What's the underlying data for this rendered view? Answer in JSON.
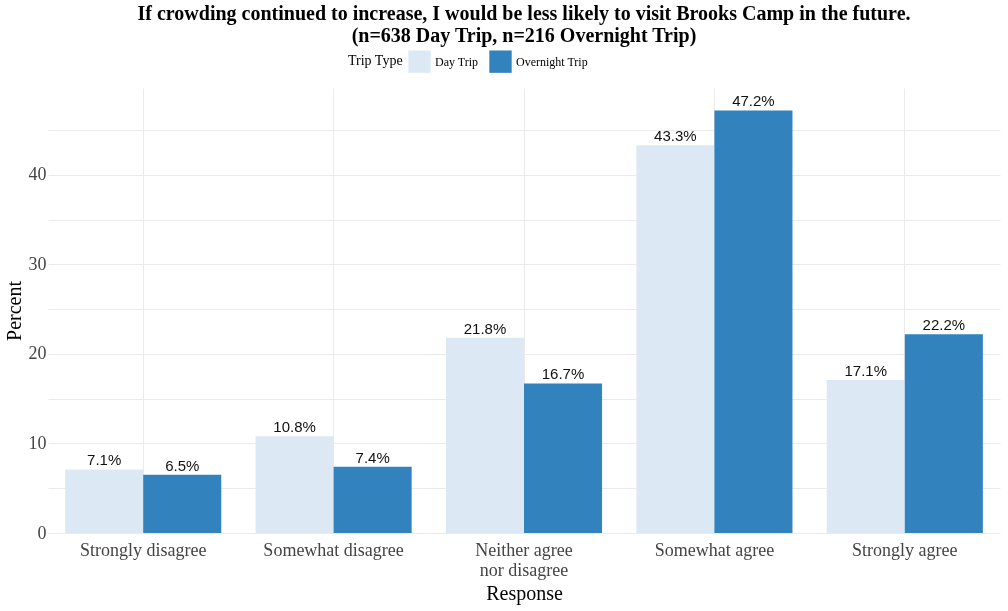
{
  "chart_data": {
    "type": "bar",
    "title": "If crowding continued to increase, I would be less likely to visit Brooks Camp in the future.",
    "subtitle": "(n=638 Day Trip, n=216 Overnight Trip)",
    "xlabel": "Response",
    "ylabel": "Percent",
    "legend_title": "Trip Type",
    "legend": "top",
    "categories": [
      "Strongly disagree",
      "Somewhat disagree",
      "Neither agree\nnor disagree",
      "Somewhat agree",
      "Strongly agree"
    ],
    "series": [
      {
        "name": "Day Trip",
        "color": "#dce9f5",
        "values": [
          7.1,
          10.8,
          21.8,
          43.3,
          17.1
        ],
        "value_labels": [
          "7.1%",
          "10.8%",
          "21.8%",
          "43.3%",
          "17.1%"
        ]
      },
      {
        "name": "Overnight Trip",
        "color": "#3182bd",
        "values": [
          6.5,
          7.4,
          16.7,
          47.2,
          22.2
        ],
        "value_labels": [
          "6.5%",
          "7.4%",
          "16.7%",
          "47.2%",
          "22.2%"
        ]
      }
    ],
    "ylim": [
      0,
      49.7
    ],
    "yticks": [
      0,
      {
        "value": 5,
        "label": null
      },
      10,
      {
        "value": 15,
        "label": null
      },
      20,
      {
        "value": 25,
        "label": null
      },
      30,
      {
        "value": 35,
        "label": null
      },
      40,
      {
        "value": 45,
        "label": null
      }
    ],
    "grid": true
  }
}
